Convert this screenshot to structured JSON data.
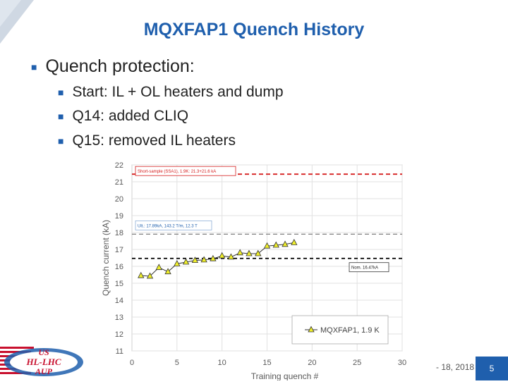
{
  "slide": {
    "title": "MQXFAP1 Quench History",
    "bullet_main": "Quench protection:",
    "sub_bullets": [
      "Start: IL + OL heaters and dump",
      "Q14: added CLIQ",
      "Q15: removed IL heaters"
    ],
    "footer_date": "- 18, 2018",
    "page_number": "5",
    "logo_text": [
      "US",
      "HL-LHC",
      "AUP"
    ]
  },
  "colors": {
    "accent": "#1f5fad",
    "short_sample_line": "#d62020",
    "ult_line": "#7f7f7f",
    "nom_line": "#000000",
    "series_marker": "#f0ef2a"
  },
  "chart_data": {
    "type": "line",
    "xlabel": "Training quench #",
    "ylabel": "Quench current (kA)",
    "xlim": [
      0,
      30
    ],
    "ylim": [
      11,
      22
    ],
    "xticks": [
      0,
      5,
      10,
      15,
      20,
      25,
      30
    ],
    "yticks": [
      11,
      12,
      13,
      14,
      15,
      16,
      17,
      18,
      19,
      20,
      21,
      22
    ],
    "grid": true,
    "legend_position": "bottom-right",
    "series": [
      {
        "name": "MQXFAP1, 1.9 K",
        "x": [
          1,
          2,
          3,
          4,
          5,
          6,
          7,
          8,
          9,
          10,
          11,
          12,
          13,
          14,
          15,
          16,
          17,
          18
        ],
        "values": [
          15.45,
          15.42,
          15.93,
          15.68,
          16.15,
          16.25,
          16.35,
          16.38,
          16.45,
          16.62,
          16.55,
          16.8,
          16.75,
          16.75,
          17.2,
          17.25,
          17.3,
          17.4
        ]
      }
    ],
    "reference_lines": [
      {
        "label": "Short-sample (SSA1), 1.9K:  21.3+21.6 kA",
        "y": 21.45,
        "color": "#d62020"
      },
      {
        "label": "Ult.: 17.89kA, 143.2 T/m, 12.3 T",
        "y": 17.9,
        "color": "#7f7f7f"
      },
      {
        "label": "Nom. 16.47kA",
        "y": 16.47,
        "color": "#000000"
      }
    ]
  }
}
